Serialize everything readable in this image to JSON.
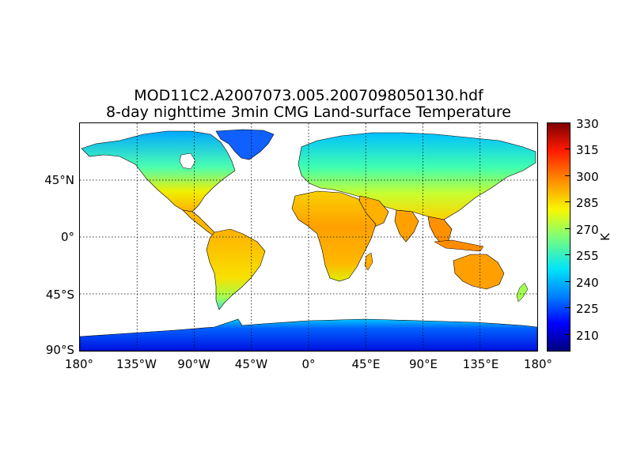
{
  "title": {
    "line1": "MOD11C2.A2007073.005.2007098050130.hdf",
    "line2": "8-day nighttime 3min CMG Land-surface Temperature"
  },
  "map": {
    "projection": "cylindrical",
    "grid": "dotted",
    "lat_labels": [
      {
        "lat": 45,
        "text": "45°N"
      },
      {
        "lat": 0,
        "text": "0°"
      },
      {
        "lat": -45,
        "text": "45°S"
      },
      {
        "lat": -90,
        "text": "90°S"
      }
    ],
    "lon_labels": [
      {
        "lon": -180,
        "text": "180°"
      },
      {
        "lon": -135,
        "text": "135°W"
      },
      {
        "lon": -90,
        "text": "90°W"
      },
      {
        "lon": -45,
        "text": "45°W"
      },
      {
        "lon": 0,
        "text": "0°"
      },
      {
        "lon": 45,
        "text": "45°E"
      },
      {
        "lon": 90,
        "text": "90°E"
      },
      {
        "lon": 135,
        "text": "135°E"
      },
      {
        "lon": 180,
        "text": "180°"
      }
    ]
  },
  "colorbar": {
    "min": 200,
    "max": 330,
    "ticks": [
      "330",
      "315",
      "300",
      "285",
      "270",
      "255",
      "240",
      "225",
      "210"
    ],
    "tick_values": [
      330,
      315,
      300,
      285,
      270,
      255,
      240,
      225,
      210
    ],
    "unit": "K",
    "colormap": "jet"
  }
}
